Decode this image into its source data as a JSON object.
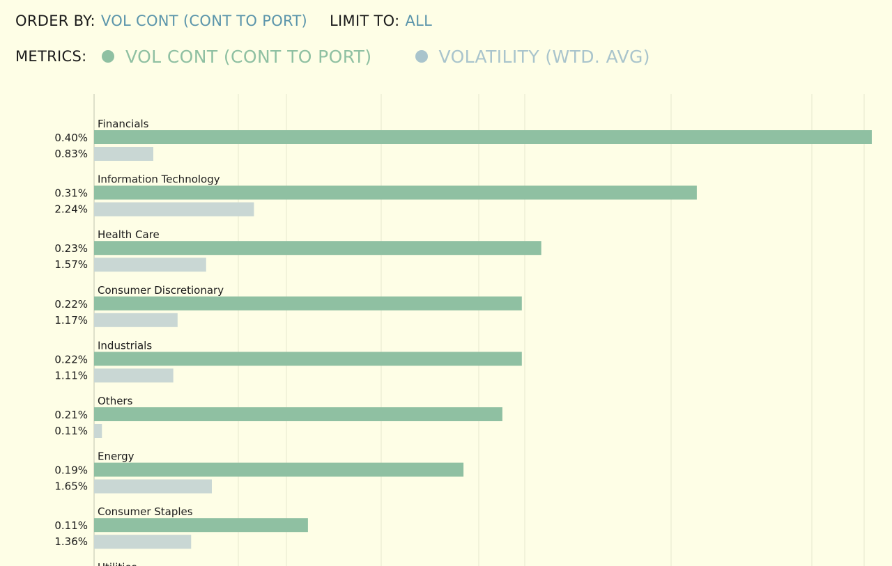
{
  "controls": {
    "order_by_label": "ORDER BY:",
    "order_by_value": "VOL CONT (CONT TO PORT)",
    "limit_to_label": "LIMIT TO:",
    "limit_to_value": "ALL",
    "metrics_label": "METRICS:",
    "metrics": [
      {
        "name": "VOL CONT (CONT TO PORT)",
        "color": "#8fc0a2"
      },
      {
        "name": "VOLATILITY (WTD. AVG)",
        "color": "#a9c4cc"
      }
    ]
  },
  "chart_data": {
    "type": "bar",
    "orientation": "horizontal",
    "grid": true,
    "categories": [
      "Financials",
      "Information Technology",
      "Health Care",
      "Consumer Discretionary",
      "Industrials",
      "Others",
      "Energy",
      "Consumer Staples",
      "Utilities"
    ],
    "series": [
      {
        "name": "VOL CONT (CONT TO PORT)",
        "color": "#8fc0a2",
        "values": [
          0.4,
          0.31,
          0.23,
          0.22,
          0.22,
          0.21,
          0.19,
          0.11,
          null
        ],
        "labels": [
          "0.40%",
          "0.31%",
          "0.23%",
          "0.22%",
          "0.22%",
          "0.21%",
          "0.19%",
          "0.11%",
          ""
        ]
      },
      {
        "name": "VOLATILITY (WTD. AVG)",
        "color": "#c9d7d4",
        "values": [
          0.83,
          2.24,
          1.57,
          1.17,
          1.11,
          0.11,
          1.65,
          1.36,
          null
        ],
        "labels": [
          "0.83%",
          "2.24%",
          "1.57%",
          "1.17%",
          "1.11%",
          "0.11%",
          "1.65%",
          "1.36%",
          ""
        ]
      }
    ]
  }
}
